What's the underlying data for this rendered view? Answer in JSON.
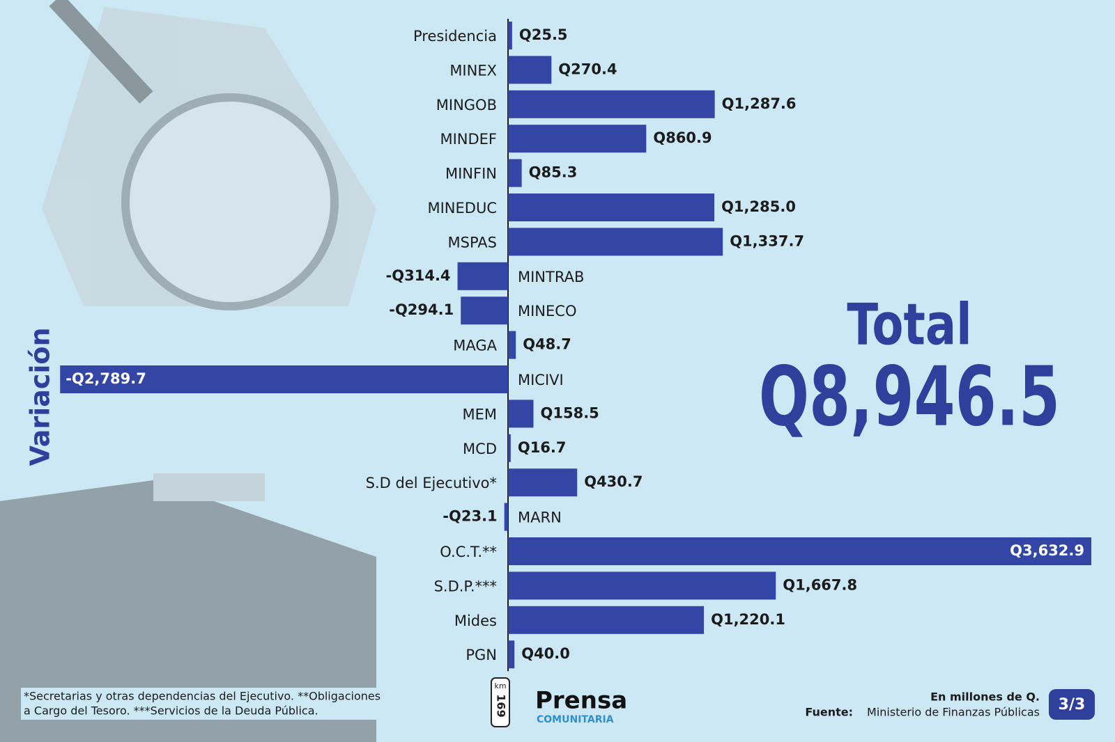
{
  "chart_data": {
    "type": "bar",
    "orientation": "horizontal",
    "axis_label": "Variación",
    "categories": [
      "Presidencia",
      "MINEX",
      "MINGOB",
      "MINDEF",
      "MINFIN",
      "MINEDUC",
      "MSPAS",
      "MINTRAB",
      "MINECO",
      "MAGA",
      "MICIVI",
      "MEM",
      "MCD",
      "S.D del Ejecutivo*",
      "MARN",
      "O.C.T.**",
      "S.D.P.***",
      "Mides",
      "PGN"
    ],
    "values": [
      25.5,
      270.4,
      1287.6,
      860.9,
      85.3,
      1285.0,
      1337.7,
      -314.4,
      -294.1,
      48.7,
      -2789.7,
      158.5,
      16.7,
      430.7,
      -23.1,
      3632.9,
      1667.8,
      1220.1,
      40.0
    ],
    "value_labels": [
      "Q25.5",
      "Q270.4",
      "Q1,287.6",
      "Q860.9",
      "Q85.3",
      "Q1,285.0",
      "Q1,337.7",
      "-Q314.4",
      "-Q294.1",
      "Q48.7",
      "-Q2,789.7",
      "Q158.5",
      "Q16.7",
      "Q430.7",
      "-Q23.1",
      "Q3,632.9",
      "Q1,667.8",
      "Q1,220.1",
      "Q40.0"
    ],
    "color": "#3346a6",
    "total_title": "Total",
    "total": "Q8,946.5",
    "footnote": [
      "*Secretarias y otras dependencias del Ejecutivo. **Obligaciones",
      "a Cargo del Tesoro. ***Servicios de la Deuda Pública."
    ],
    "units": "En millones de Q.",
    "source_label": "Fuente:",
    "source": "Ministerio de Finanzas Públicas",
    "page": "3/3",
    "logo": {
      "sign": [
        "km",
        "169"
      ],
      "name": "Prensa",
      "sub": "COMUNITARIA"
    }
  }
}
